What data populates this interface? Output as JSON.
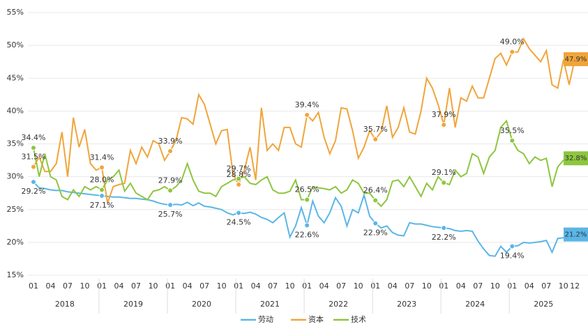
{
  "chart_data": {
    "type": "line",
    "categories": [
      "01",
      null,
      null,
      "04",
      null,
      null,
      "07",
      null,
      null,
      "10",
      null,
      null,
      "01",
      null,
      null,
      "04",
      null,
      null,
      "07",
      null,
      null,
      "10",
      null,
      null,
      "01",
      null,
      null,
      "04",
      null,
      null,
      "07",
      null,
      null,
      "10",
      null,
      null,
      "01",
      null,
      null,
      "04",
      null,
      null,
      "07",
      null,
      null,
      "10",
      null,
      null,
      "01",
      null,
      null,
      "04",
      null,
      null,
      "07",
      null,
      null,
      "10",
      null,
      null,
      "01",
      null,
      null,
      "04",
      null,
      null,
      "07",
      null,
      null,
      "10",
      null,
      null,
      "01",
      null,
      null,
      "04",
      null,
      null,
      "07",
      null,
      null,
      "10",
      null,
      null,
      "01",
      null,
      null,
      "04",
      null,
      null,
      "07",
      null,
      null,
      "10",
      null,
      "12"
    ],
    "x_groups": [
      "2018",
      "2019",
      "2020",
      "2021",
      "2022",
      "2023",
      "2024",
      "2025"
    ],
    "ylim": [
      15,
      55
    ],
    "yticks": [
      {
        "value": 15,
        "label": "15%"
      },
      {
        "value": 20,
        "label": "20%"
      },
      {
        "value": 25,
        "label": "25%"
      },
      {
        "value": 30,
        "label": "30%"
      },
      {
        "value": 35,
        "label": "35%"
      },
      {
        "value": 40,
        "label": "40%"
      },
      {
        "value": 45,
        "label": "45%"
      },
      {
        "value": 50,
        "label": "50%"
      },
      {
        "value": 55,
        "label": "55%"
      }
    ],
    "grid": true,
    "legend": "bottom",
    "series": [
      {
        "name": "劳动",
        "color": "#5ab6e6",
        "values": [
          29.2,
          28.3,
          28.2,
          28.0,
          27.9,
          27.9,
          27.7,
          27.6,
          27.5,
          27.4,
          27.3,
          27.2,
          27.1,
          27.0,
          26.9,
          26.9,
          26.8,
          26.7,
          26.7,
          26.6,
          26.5,
          26.3,
          26.0,
          25.8,
          25.7,
          25.8,
          25.7,
          26.1,
          25.6,
          26.0,
          25.5,
          25.4,
          25.2,
          25.0,
          24.5,
          24.2,
          24.5,
          24.4,
          24.6,
          24.3,
          23.8,
          23.5,
          23.0,
          23.8,
          24.5,
          20.8,
          22.5,
          25.3,
          22.6,
          26.3,
          24.0,
          23.0,
          24.5,
          26.8,
          25.5,
          22.5,
          25.0,
          24.5,
          27.2,
          24.0,
          22.9,
          22.2,
          22.5,
          21.5,
          21.1,
          21.0,
          23.0,
          22.8,
          22.8,
          22.6,
          22.4,
          22.3,
          22.2,
          22.1,
          21.8,
          21.7,
          21.8,
          21.7,
          20.2,
          19.0,
          18.0,
          17.9,
          19.4,
          18.5,
          19.4,
          19.5,
          20.0,
          19.9,
          20.0,
          20.1,
          20.3,
          18.5,
          20.6,
          20.7,
          20.9,
          21.2
        ],
        "value_labels": [
          "29.2%",
          null,
          null,
          null,
          null,
          null,
          null,
          null,
          null,
          null,
          null,
          null,
          "27.1%",
          null,
          null,
          null,
          null,
          null,
          null,
          null,
          null,
          null,
          null,
          null,
          "25.7%",
          null,
          null,
          null,
          null,
          null,
          null,
          null,
          null,
          null,
          null,
          null,
          "24.5%",
          null,
          null,
          null,
          null,
          null,
          null,
          null,
          null,
          null,
          null,
          null,
          "22.6%",
          null,
          null,
          null,
          null,
          null,
          null,
          null,
          null,
          null,
          null,
          null,
          "22.9%",
          null,
          null,
          null,
          null,
          null,
          null,
          null,
          null,
          null,
          null,
          null,
          "22.2%",
          null,
          null,
          null,
          null,
          null,
          null,
          null,
          null,
          null,
          null,
          null,
          "19.4%",
          null,
          null,
          null,
          null,
          null,
          null,
          null,
          null,
          null,
          null,
          "21.2%"
        ]
      },
      {
        "name": "资本",
        "color": "#f0a53a",
        "values": [
          31.5,
          33.0,
          30.8,
          30.8,
          32.0,
          36.8,
          30.0,
          39.0,
          34.5,
          37.2,
          32.0,
          31.0,
          31.4,
          26.0,
          28.5,
          28.8,
          29.0,
          34.0,
          32.0,
          34.5,
          33.0,
          35.5,
          35.0,
          32.5,
          33.9,
          35.5,
          39.0,
          38.8,
          38.0,
          42.5,
          41.0,
          38.0,
          35.0,
          37.0,
          37.2,
          30.5,
          28.8,
          31.0,
          34.5,
          29.5,
          40.5,
          34.0,
          35.0,
          34.0,
          37.5,
          37.5,
          35.0,
          34.5,
          39.4,
          38.5,
          39.8,
          36.0,
          33.5,
          35.5,
          40.5,
          40.3,
          37.0,
          32.8,
          34.5,
          37.0,
          35.7,
          36.8,
          40.8,
          36.0,
          37.5,
          40.5,
          36.8,
          36.5,
          40.0,
          45.0,
          43.5,
          41.0,
          37.9,
          43.5,
          37.5,
          42.0,
          41.5,
          43.8,
          42.0,
          42.0,
          45.0,
          48.0,
          48.8,
          47.0,
          49.0,
          49.0,
          51.0,
          49.5,
          48.5,
          47.5,
          49.2,
          44.0,
          43.5,
          47.8,
          44.0,
          47.9
        ],
        "value_labels": [
          "31.5%",
          null,
          null,
          null,
          null,
          null,
          null,
          null,
          null,
          null,
          null,
          null,
          "31.4%",
          null,
          null,
          null,
          null,
          null,
          null,
          null,
          null,
          null,
          null,
          null,
          "33.9%",
          null,
          null,
          null,
          null,
          null,
          null,
          null,
          null,
          null,
          null,
          null,
          "28.8%",
          null,
          null,
          null,
          null,
          null,
          null,
          null,
          null,
          null,
          null,
          null,
          "39.4%",
          null,
          null,
          null,
          null,
          null,
          null,
          null,
          null,
          null,
          null,
          null,
          "35.7%",
          null,
          null,
          null,
          null,
          null,
          null,
          null,
          null,
          null,
          null,
          null,
          "37.9%",
          null,
          null,
          null,
          null,
          null,
          null,
          null,
          null,
          null,
          null,
          null,
          "49.0%",
          null,
          null,
          null,
          null,
          null,
          null,
          null,
          null,
          null,
          null,
          "47.9%"
        ]
      },
      {
        "name": "技术",
        "color": "#8dc63f",
        "values": [
          34.4,
          30.0,
          33.5,
          30.0,
          29.5,
          27.0,
          26.5,
          28.0,
          27.0,
          28.5,
          28.0,
          28.5,
          28.0,
          29.5,
          30.0,
          31.0,
          27.8,
          29.0,
          27.5,
          27.0,
          26.5,
          27.8,
          28.0,
          28.5,
          27.9,
          28.5,
          29.5,
          32.0,
          29.5,
          27.8,
          27.5,
          27.5,
          27.0,
          28.5,
          29.0,
          29.5,
          29.7,
          30.0,
          29.0,
          28.8,
          29.5,
          30.0,
          28.0,
          27.5,
          27.5,
          27.8,
          29.5,
          26.5,
          26.5,
          28.5,
          28.3,
          28.2,
          28.0,
          28.5,
          27.5,
          28.0,
          29.5,
          29.0,
          27.5,
          27.5,
          26.4,
          25.5,
          26.5,
          29.3,
          29.5,
          28.5,
          30.0,
          28.5,
          27.0,
          29.0,
          28.0,
          30.0,
          29.1,
          28.8,
          31.0,
          30.0,
          30.5,
          33.5,
          33.0,
          30.5,
          33.0,
          34.0,
          37.5,
          38.5,
          35.5,
          34.0,
          33.5,
          32.0,
          33.0,
          32.5,
          32.8,
          28.5,
          31.5,
          32.5,
          32.0,
          32.8
        ],
        "value_labels": [
          "34.4%",
          null,
          null,
          null,
          null,
          null,
          null,
          null,
          null,
          null,
          null,
          null,
          "28.0%",
          null,
          null,
          null,
          null,
          null,
          null,
          null,
          null,
          null,
          null,
          null,
          "27.9%",
          null,
          null,
          null,
          null,
          null,
          null,
          null,
          null,
          null,
          null,
          null,
          "29.7%",
          null,
          null,
          null,
          null,
          null,
          null,
          null,
          null,
          null,
          null,
          null,
          "26.5%",
          null,
          null,
          null,
          null,
          null,
          null,
          null,
          null,
          null,
          null,
          null,
          "26.4%",
          null,
          null,
          null,
          null,
          null,
          null,
          null,
          null,
          null,
          null,
          null,
          "29.1%",
          null,
          null,
          null,
          null,
          null,
          null,
          null,
          null,
          null,
          null,
          null,
          "35.5%",
          null,
          null,
          null,
          null,
          null,
          null,
          null,
          null,
          null,
          null,
          "32.8%"
        ]
      }
    ]
  }
}
